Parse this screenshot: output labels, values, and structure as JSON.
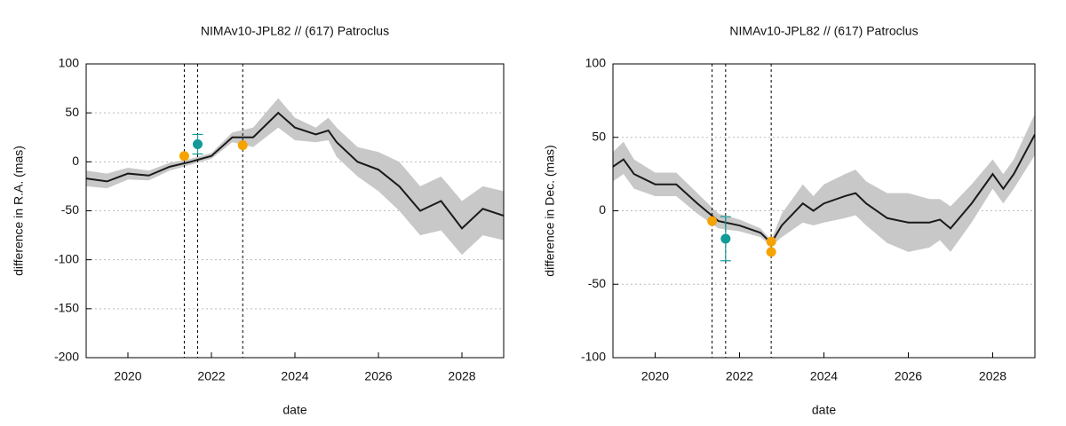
{
  "chart_data": [
    {
      "type": "line",
      "title": "NIMAv10-JPL82 // (617) Patroclus",
      "xlabel": "date",
      "ylabel": "difference in R.A. (mas)",
      "xlim": [
        2019,
        2029
      ],
      "xticks": [
        2020,
        2022,
        2024,
        2026,
        2028
      ],
      "ylim": [
        -200,
        100
      ],
      "yticks": [
        -200,
        -150,
        -100,
        -50,
        0,
        50,
        100
      ],
      "grid": true,
      "line_color": "#1a1a1a",
      "band_color": "#c8c8c8",
      "x": [
        2019,
        2019.5,
        2020,
        2020.5,
        2021,
        2021.5,
        2022,
        2022.5,
        2023,
        2023.6,
        2024,
        2024.5,
        2024.8,
        2025,
        2025.5,
        2026,
        2026.5,
        2027,
        2027.5,
        2028,
        2028.5,
        2029
      ],
      "values": [
        -17,
        -20,
        -12,
        -14,
        -5,
        0,
        6,
        25,
        25,
        50,
        35,
        28,
        32,
        20,
        0,
        -8,
        -25,
        -50,
        -40,
        -68,
        -48,
        -55
      ],
      "lower": [
        -25,
        -27,
        -18,
        -19,
        -9,
        -3,
        3,
        20,
        15,
        35,
        22,
        20,
        22,
        5,
        -15,
        -30,
        -50,
        -75,
        -70,
        -95,
        -75,
        -80
      ],
      "upper": [
        -9,
        -12,
        -6,
        -9,
        -1,
        3,
        9,
        30,
        35,
        65,
        45,
        35,
        45,
        35,
        15,
        10,
        0,
        -25,
        -15,
        -40,
        -25,
        -30
      ],
      "vlines": [
        2021.35,
        2021.67,
        2022.75
      ],
      "points": [
        {
          "x": 2021.35,
          "y": 6,
          "color": "#f5a300"
        },
        {
          "x": 2022.75,
          "y": 17,
          "color": "#f5a300"
        },
        {
          "x": 2021.67,
          "y": 18,
          "error": 10,
          "color": "#129a98"
        }
      ]
    },
    {
      "type": "line",
      "title": "NIMAv10-JPL82 // (617) Patroclus",
      "xlabel": "date",
      "ylabel": "difference in Dec. (mas)",
      "xlim": [
        2019,
        2029
      ],
      "xticks": [
        2020,
        2022,
        2024,
        2026,
        2028
      ],
      "ylim": [
        -100,
        100
      ],
      "yticks": [
        -100,
        -50,
        0,
        50,
        100
      ],
      "grid": true,
      "line_color": "#1a1a1a",
      "band_color": "#c8c8c8",
      "x": [
        2019,
        2019.25,
        2019.5,
        2020,
        2020.5,
        2021,
        2021.5,
        2022,
        2022.5,
        2022.75,
        2023,
        2023.5,
        2023.75,
        2024,
        2024.5,
        2024.75,
        2025,
        2025.5,
        2026,
        2026.5,
        2026.75,
        2027,
        2027.5,
        2028,
        2028.25,
        2028.5,
        2029
      ],
      "values": [
        30,
        35,
        25,
        18,
        18,
        5,
        -7,
        -10,
        -15,
        -22,
        -10,
        5,
        0,
        5,
        10,
        12,
        5,
        -5,
        -8,
        -8,
        -6,
        -12,
        5,
        25,
        15,
        25,
        52
      ],
      "lower": [
        20,
        25,
        15,
        10,
        10,
        -2,
        -12,
        -14,
        -18,
        -24,
        -18,
        -8,
        -10,
        -8,
        -5,
        -3,
        -10,
        -22,
        -28,
        -25,
        -20,
        -28,
        -8,
        15,
        5,
        15,
        38
      ],
      "upper": [
        40,
        47,
        35,
        26,
        26,
        12,
        -2,
        -6,
        -12,
        -20,
        -2,
        18,
        10,
        18,
        25,
        28,
        20,
        12,
        12,
        8,
        8,
        3,
        18,
        35,
        25,
        35,
        66
      ],
      "vlines": [
        2021.35,
        2021.67,
        2022.75
      ],
      "points": [
        {
          "x": 2021.35,
          "y": -7,
          "color": "#f5a300"
        },
        {
          "x": 2022.75,
          "y": -21,
          "color": "#f5a300"
        },
        {
          "x": 2022.75,
          "y": -28,
          "color": "#f5a300"
        },
        {
          "x": 2021.67,
          "y": -19,
          "error": 15,
          "color": "#129a98"
        }
      ]
    }
  ]
}
